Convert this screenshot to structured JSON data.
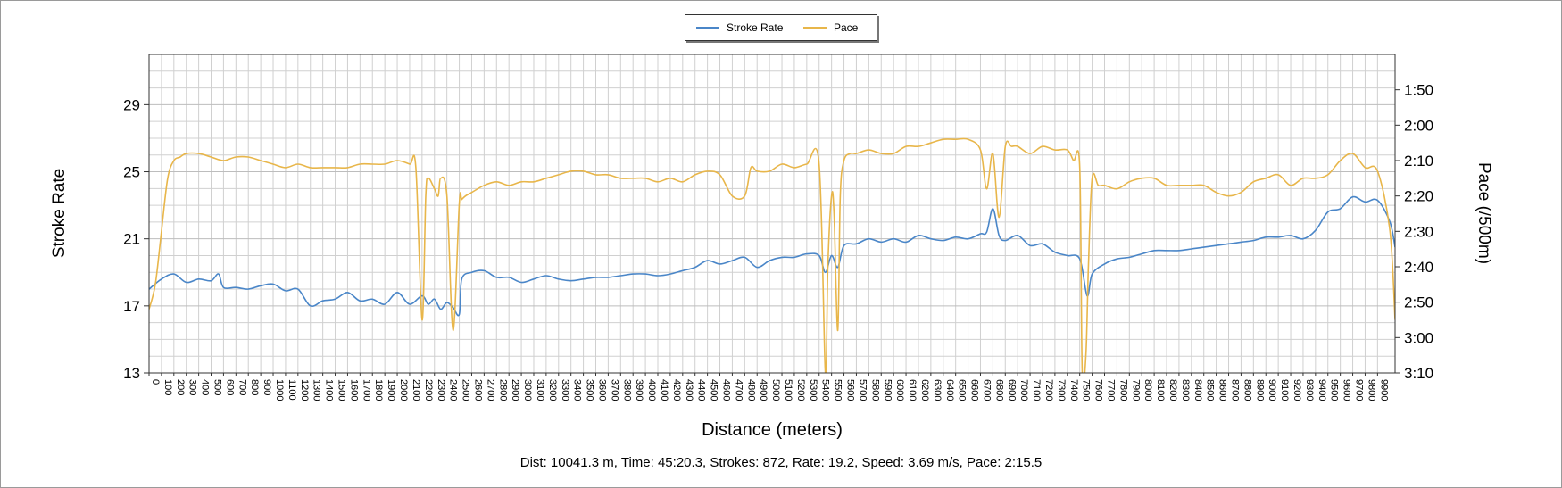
{
  "legend": {
    "series1": "Stroke Rate",
    "series2": "Pace"
  },
  "summary": "Dist: 10041.3 m, Time: 45:20.3, Strokes: 872, Rate: 19.2, Speed: 3.69 m/s, Pace: 2:15.5",
  "chart_data": {
    "type": "line",
    "xlabel": "Distance (meters)",
    "ylabel": "Stroke Rate",
    "y2label": "Pace (/500m)",
    "xlim": [
      0,
      10041.3
    ],
    "ylim": [
      13,
      32
    ],
    "y2lim": [
      "1:40",
      "3:10"
    ],
    "xticks": [
      0,
      100,
      200,
      300,
      400,
      500,
      600,
      700,
      800,
      900,
      1000,
      1100,
      1200,
      1300,
      1400,
      1500,
      1600,
      1700,
      1800,
      1900,
      2000,
      2100,
      2200,
      2300,
      2400,
      2500,
      2600,
      2700,
      2800,
      2900,
      3000,
      3100,
      3200,
      3300,
      3400,
      3500,
      3600,
      3700,
      3800,
      3900,
      4000,
      4100,
      4200,
      4300,
      4400,
      4500,
      4600,
      4700,
      4800,
      4900,
      5000,
      5100,
      5200,
      5300,
      5400,
      5500,
      5600,
      5700,
      5800,
      5900,
      6000,
      6100,
      6200,
      6300,
      6400,
      6500,
      6600,
      6700,
      6800,
      6900,
      7000,
      7100,
      7200,
      7300,
      7400,
      7500,
      7600,
      7700,
      7800,
      7900,
      8000,
      8100,
      8200,
      8300,
      8400,
      8500,
      8600,
      8700,
      8800,
      8900,
      9000,
      9100,
      9200,
      9300,
      9400,
      9500,
      9600,
      9700,
      9800,
      9900
    ],
    "yticks": [
      13,
      17,
      21,
      25,
      29
    ],
    "y2ticks": [
      "1:50",
      "2:00",
      "2:10",
      "2:20",
      "2:30",
      "2:40",
      "2:50",
      "3:00",
      "3:10"
    ],
    "grid": true,
    "legend_position": "top-center",
    "colors": {
      "stroke_rate": "#4a86c8",
      "pace": "#e8b64a",
      "grid": "#d0d0d0",
      "axis": "#333333"
    },
    "series": [
      {
        "name": "Stroke Rate",
        "axis": "left",
        "x": [
          0,
          100,
          200,
          300,
          400,
          500,
          560,
          600,
          700,
          800,
          900,
          1000,
          1100,
          1200,
          1300,
          1400,
          1500,
          1600,
          1700,
          1800,
          1900,
          2000,
          2100,
          2200,
          2250,
          2300,
          2350,
          2400,
          2450,
          2500,
          2520,
          2600,
          2700,
          2800,
          2900,
          3000,
          3100,
          3200,
          3300,
          3400,
          3500,
          3600,
          3700,
          3800,
          3900,
          4000,
          4100,
          4200,
          4300,
          4400,
          4500,
          4600,
          4700,
          4800,
          4900,
          5000,
          5100,
          5200,
          5300,
          5400,
          5450,
          5500,
          5550,
          5600,
          5700,
          5800,
          5900,
          6000,
          6100,
          6200,
          6300,
          6400,
          6500,
          6600,
          6700,
          6750,
          6800,
          6850,
          6900,
          7000,
          7100,
          7200,
          7300,
          7400,
          7500,
          7560,
          7600,
          7700,
          7800,
          7900,
          8000,
          8100,
          8200,
          8300,
          8400,
          8500,
          8600,
          8700,
          8800,
          8900,
          9000,
          9100,
          9200,
          9300,
          9400,
          9500,
          9600,
          9700,
          9800,
          9900,
          10000,
          10041
        ],
        "values": [
          18.0,
          18.6,
          18.9,
          18.4,
          18.6,
          18.5,
          18.9,
          18.1,
          18.1,
          18.0,
          18.2,
          18.3,
          17.9,
          18.0,
          17.0,
          17.3,
          17.4,
          17.8,
          17.3,
          17.4,
          17.1,
          17.8,
          17.1,
          17.6,
          17.1,
          17.4,
          16.8,
          17.2,
          16.9,
          16.5,
          18.6,
          19.0,
          19.1,
          18.7,
          18.7,
          18.4,
          18.6,
          18.8,
          18.6,
          18.5,
          18.6,
          18.7,
          18.7,
          18.8,
          18.9,
          18.9,
          18.8,
          18.9,
          19.1,
          19.3,
          19.7,
          19.5,
          19.7,
          19.9,
          19.3,
          19.7,
          19.9,
          19.9,
          20.1,
          20.0,
          19.0,
          20.0,
          19.3,
          20.6,
          20.7,
          21.0,
          20.8,
          21.0,
          20.8,
          21.2,
          21.0,
          20.9,
          21.1,
          21.0,
          21.3,
          21.4,
          22.8,
          21.2,
          20.9,
          21.2,
          20.6,
          20.7,
          20.2,
          20.0,
          19.8,
          17.6,
          18.9,
          19.5,
          19.8,
          19.9,
          20.1,
          20.3,
          20.3,
          20.3,
          20.4,
          20.5,
          20.6,
          20.7,
          20.8,
          20.9,
          21.1,
          21.1,
          21.2,
          21.0,
          21.5,
          22.6,
          22.8,
          23.5,
          23.2,
          23.3,
          22.0,
          20.5
        ]
      },
      {
        "name": "Pace",
        "axis": "right",
        "x": [
          0,
          50,
          100,
          150,
          200,
          250,
          300,
          400,
          500,
          600,
          700,
          800,
          900,
          1000,
          1100,
          1200,
          1300,
          1400,
          1500,
          1600,
          1700,
          1800,
          1900,
          2000,
          2100,
          2150,
          2200,
          2230,
          2250,
          2300,
          2330,
          2350,
          2400,
          2450,
          2500,
          2520,
          2550,
          2600,
          2700,
          2800,
          2900,
          3000,
          3100,
          3200,
          3300,
          3400,
          3500,
          3600,
          3700,
          3800,
          3900,
          4000,
          4100,
          4200,
          4300,
          4400,
          4500,
          4600,
          4700,
          4800,
          4850,
          4900,
          5000,
          5100,
          5200,
          5300,
          5400,
          5450,
          5470,
          5500,
          5520,
          5550,
          5570,
          5600,
          5650,
          5700,
          5800,
          5900,
          6000,
          6100,
          6200,
          6300,
          6400,
          6500,
          6600,
          6700,
          6750,
          6800,
          6850,
          6900,
          6950,
          7000,
          7100,
          7200,
          7300,
          7400,
          7450,
          7500,
          7520,
          7550,
          7570,
          7600,
          7650,
          7700,
          7800,
          7900,
          8000,
          8100,
          8200,
          8300,
          8400,
          8500,
          8600,
          8700,
          8800,
          8900,
          9000,
          9100,
          9200,
          9300,
          9400,
          9500,
          9600,
          9700,
          9800,
          9900,
          10000,
          10041
        ],
        "values": [
          "2:52",
          "2:45",
          "2:30",
          "2:15",
          "2:10",
          "2:09",
          "2:08",
          "2:08",
          "2:09",
          "2:10",
          "2:09",
          "2:09",
          "2:10",
          "2:11",
          "2:12",
          "2:11",
          "2:12",
          "2:12",
          "2:12",
          "2:12",
          "2:11",
          "2:11",
          "2:11",
          "2:10",
          "2:11",
          "2:12",
          "2:55",
          "2:20",
          "2:15",
          "2:18",
          "2:20",
          "2:15",
          "2:20",
          "2:58",
          "2:22",
          "2:21",
          "2:20",
          "2:19",
          "2:17",
          "2:16",
          "2:17",
          "2:16",
          "2:16",
          "2:15",
          "2:14",
          "2:13",
          "2:13",
          "2:14",
          "2:14",
          "2:15",
          "2:15",
          "2:15",
          "2:16",
          "2:15",
          "2:16",
          "2:14",
          "2:13",
          "2:14",
          "2:20",
          "2:20",
          "2:12",
          "2:13",
          "2:13",
          "2:11",
          "2:12",
          "2:11",
          "2:11",
          "3:10",
          "2:40",
          "2:20",
          "2:25",
          "2:58",
          "2:20",
          "2:10",
          "2:08",
          "2:08",
          "2:07",
          "2:08",
          "2:08",
          "2:06",
          "2:06",
          "2:05",
          "2:04",
          "2:04",
          "2:04",
          "2:07",
          "2:18",
          "2:08",
          "2:26",
          "2:06",
          "2:06",
          "2:06",
          "2:08",
          "2:06",
          "2:07",
          "2:07",
          "2:10",
          "2:12",
          "3:10",
          "3:05",
          "2:40",
          "2:15",
          "2:17",
          "2:17",
          "2:18",
          "2:16",
          "2:15",
          "2:15",
          "2:17",
          "2:17",
          "2:17",
          "2:17",
          "2:19",
          "2:20",
          "2:19",
          "2:16",
          "2:15",
          "2:14",
          "2:17",
          "2:15",
          "2:15",
          "2:14",
          "2:10",
          "2:08",
          "2:12",
          "2:13",
          "2:30",
          "2:55"
        ]
      }
    ]
  }
}
